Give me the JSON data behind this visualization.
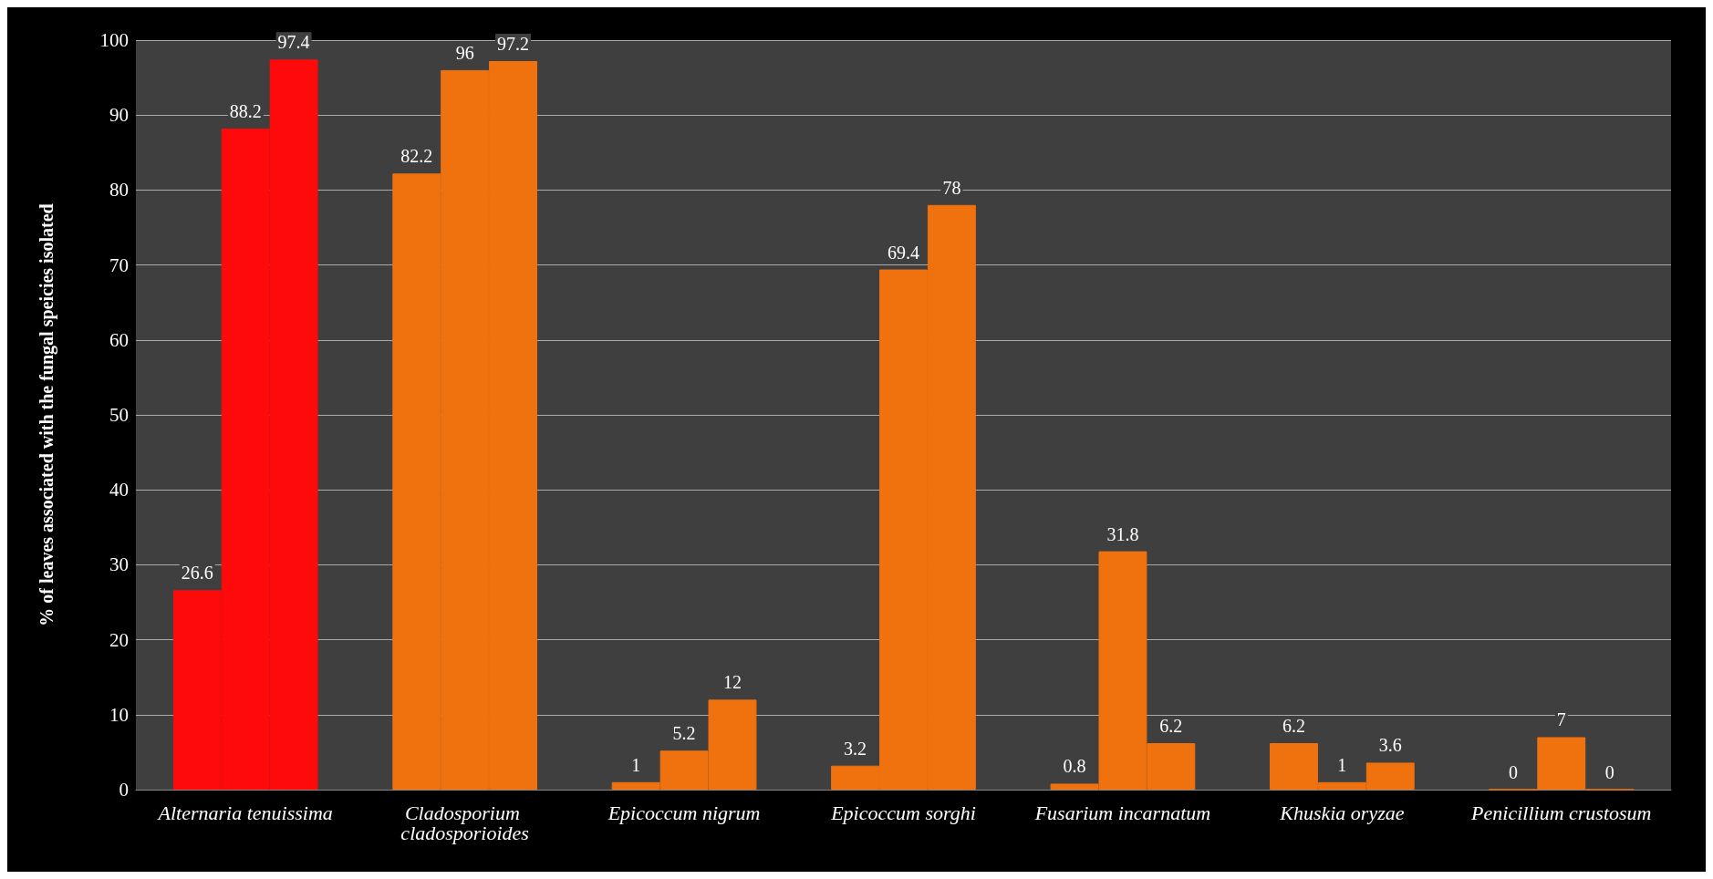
{
  "chart_data": {
    "type": "bar",
    "ylabel": "% of leaves associated with the fungal speicies isolated",
    "categories": [
      "Alternaria tenuissima",
      "Cladosporium cladosporioides",
      "Epicoccum nigrum",
      "Epicoccum sorghi",
      "Fusarium incarnatum",
      "Khuskia oryzae",
      "Penicillium crustosum"
    ],
    "series": [
      {
        "colors": [
          "#ff0a0a",
          "#f0720f",
          "#f0720f",
          "#f0720f",
          "#f0720f",
          "#f0720f",
          "#f0720f"
        ],
        "values": [
          26.6,
          82.2,
          1,
          3.2,
          0.8,
          6.2,
          0
        ]
      },
      {
        "colors": [
          "#ff0a0a",
          "#f0720f",
          "#f0720f",
          "#f0720f",
          "#f0720f",
          "#f0720f",
          "#f0720f"
        ],
        "values": [
          88.2,
          96,
          5.2,
          69.4,
          31.8,
          1,
          7
        ]
      },
      {
        "colors": [
          "#ff0a0a",
          "#f0720f",
          "#f0720f",
          "#f0720f",
          "#f0720f",
          "#f0720f",
          "#f0720f"
        ],
        "values": [
          97.4,
          97.2,
          12,
          78,
          6.2,
          3.6,
          0
        ]
      }
    ],
    "ylim": [
      0,
      100
    ],
    "yticks": [
      0,
      10,
      20,
      30,
      40,
      50,
      60,
      70,
      80,
      90,
      100
    ],
    "grid": "y",
    "data_labels": true
  }
}
